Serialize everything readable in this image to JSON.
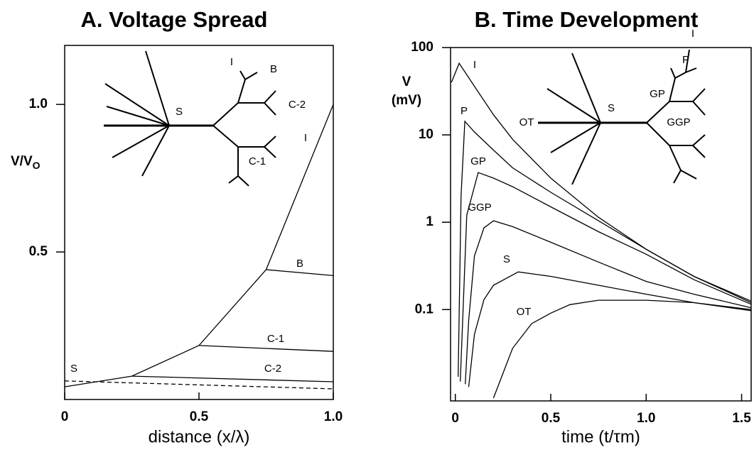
{
  "chart_data": [
    {
      "type": "line",
      "title": "A. Voltage Spread",
      "xlabel": "distance (x/λ)",
      "ylabel": "V/V",
      "ylabel_sub": "O",
      "xlim": [
        0,
        1
      ],
      "xticks": [
        0,
        0.5,
        {
          "value": 1,
          "label": "1.0"
        }
      ],
      "ylim": [
        0,
        1.2
      ],
      "yticks": [
        0.5,
        {
          "value": 1,
          "label": "1.0"
        }
      ],
      "series": [
        {
          "name": "I",
          "color": "#000000",
          "x": [
            0,
            0.25,
            0.5,
            0.75,
            1
          ],
          "values": [
            0.043,
            0.079,
            0.183,
            0.44,
            1.0
          ]
        },
        {
          "name": "B",
          "color": "#000000",
          "x": [
            0.75,
            1
          ],
          "values": [
            0.44,
            0.42
          ]
        },
        {
          "name": "C-1",
          "color": "#000000",
          "x": [
            0.5,
            1
          ],
          "values": [
            0.183,
            0.163
          ]
        },
        {
          "name": "C-2",
          "color": "#000000",
          "x": [
            0.25,
            1
          ],
          "values": [
            0.079,
            0.06
          ]
        },
        {
          "name": "S",
          "color": "#000000",
          "dashed": true,
          "x": [
            0,
            1
          ],
          "values": [
            0.063,
            0.036
          ]
        }
      ]
    },
    {
      "type": "line",
      "title": "B. Time Development",
      "xlabel": "time (t/τm)",
      "ylabel": "V",
      "ylabel_unit": "(mV)",
      "yscale": "log",
      "xlim": [
        -0.025,
        1.55
      ],
      "xticks": [
        0,
        0.5,
        {
          "value": 1,
          "label": "1.0"
        },
        1.5
      ],
      "ylim": [
        0.009,
        100
      ],
      "yticks": [
        0.1,
        1,
        10,
        100
      ],
      "series": [
        {
          "name": "I",
          "color": "#000000",
          "x": [
            -0.02,
            0.02,
            0.1,
            0.2,
            0.3,
            0.5,
            0.75,
            1.0,
            1.25,
            1.55
          ],
          "values": [
            40,
            66,
            36,
            17,
            8.9,
            3.2,
            1.14,
            0.49,
            0.24,
            0.12
          ]
        },
        {
          "name": "P",
          "color": "#000000",
          "x": [
            0.015,
            0.03,
            0.05,
            0.1,
            0.2,
            0.3,
            0.5,
            0.75,
            1.0,
            1.25,
            1.55
          ],
          "values": [
            0.017,
            2,
            14.3,
            10.8,
            6.7,
            4.2,
            2.2,
            1.04,
            0.49,
            0.24,
            0.125
          ]
        },
        {
          "name": "GP",
          "color": "#000000",
          "x": [
            0.026,
            0.06,
            0.12,
            0.2,
            0.3,
            0.5,
            0.75,
            1.0,
            1.25,
            1.55
          ],
          "values": [
            0.015,
            1.2,
            3.7,
            3.2,
            2.55,
            1.5,
            0.78,
            0.43,
            0.22,
            0.115
          ]
        },
        {
          "name": "GGP",
          "color": "#000000",
          "x": [
            0.052,
            0.07,
            0.1,
            0.15,
            0.2,
            0.3,
            0.5,
            0.75,
            1.0,
            1.25,
            1.55
          ],
          "values": [
            0.014,
            0.075,
            0.41,
            0.86,
            1.04,
            0.89,
            0.59,
            0.35,
            0.21,
            0.15,
            0.105
          ]
        },
        {
          "name": "S",
          "color": "#000000",
          "x": [
            0.07,
            0.1,
            0.15,
            0.2,
            0.33,
            0.5,
            0.75,
            1.0,
            1.25,
            1.55
          ],
          "values": [
            0.013,
            0.052,
            0.13,
            0.19,
            0.27,
            0.24,
            0.19,
            0.15,
            0.12,
            0.097
          ]
        },
        {
          "name": "OT",
          "color": "#000000",
          "x": [
            0.2,
            0.3,
            0.4,
            0.5,
            0.6,
            0.75,
            1.0,
            1.25,
            1.55
          ],
          "values": [
            0.0097,
            0.036,
            0.069,
            0.091,
            0.114,
            0.128,
            0.128,
            0.12,
            0.1
          ]
        }
      ]
    }
  ]
}
